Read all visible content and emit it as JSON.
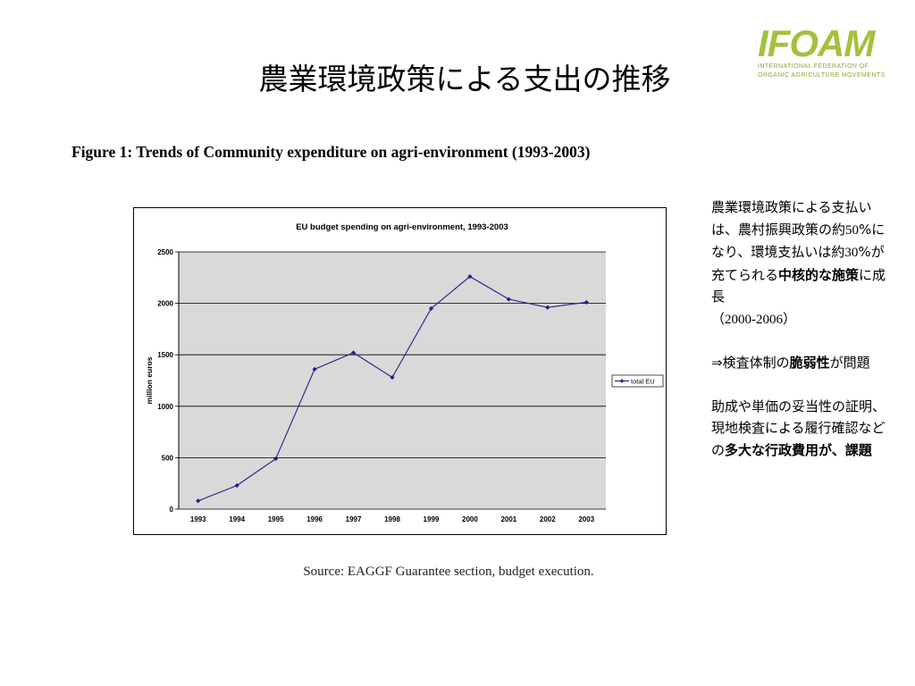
{
  "slide": {
    "title": "農業環境政策による支出の推移",
    "figure_title": "Figure 1: Trends of Community expenditure on agri-environment (1993-2003)",
    "source": "Source: EAGGF Guarantee section, budget execution."
  },
  "logo": {
    "word": "IFOAM",
    "line1": "INTERNATIONAL FEDERATION OF",
    "line2": "ORGANIC AGRICULTURE MOVEMENTS"
  },
  "side": {
    "p1_a": "農業環境政策による支払いは、農村振興政策の約",
    "p1_pct1": "50",
    "p1_b": "%になり、環境支払いは約",
    "p1_pct2": "30",
    "p1_c": "%が充てられる",
    "p1_bold": "中核的な施策",
    "p1_d": "に成長",
    "p1_period": "（2000-2006）",
    "p2_a": "⇒検査体制の",
    "p2_bold": "脆弱性",
    "p2_b": "が問題",
    "p3_a": "助成や単価の妥当性の証明、現地検査による履行確認などの",
    "p3_bold": "多大な行政費用が、課題"
  },
  "chart_data": {
    "type": "line",
    "title": "EU budget spending on agri-environment, 1993-2003",
    "xlabel": "",
    "ylabel": "million euros",
    "categories": [
      "1993",
      "1994",
      "1995",
      "1996",
      "1997",
      "1998",
      "1999",
      "2000",
      "2001",
      "2002",
      "2003"
    ],
    "series": [
      {
        "name": "total EU",
        "values": [
          80,
          230,
          490,
          1360,
          1520,
          1280,
          1950,
          2260,
          2040,
          1960,
          2010
        ],
        "color": "#1f1f8c"
      }
    ],
    "ylim": [
      0,
      2500
    ],
    "yticks": [
      0,
      500,
      1000,
      1500,
      2000,
      2500
    ],
    "grid": true,
    "plot_background": "#d9d9d9",
    "legend": "right"
  }
}
